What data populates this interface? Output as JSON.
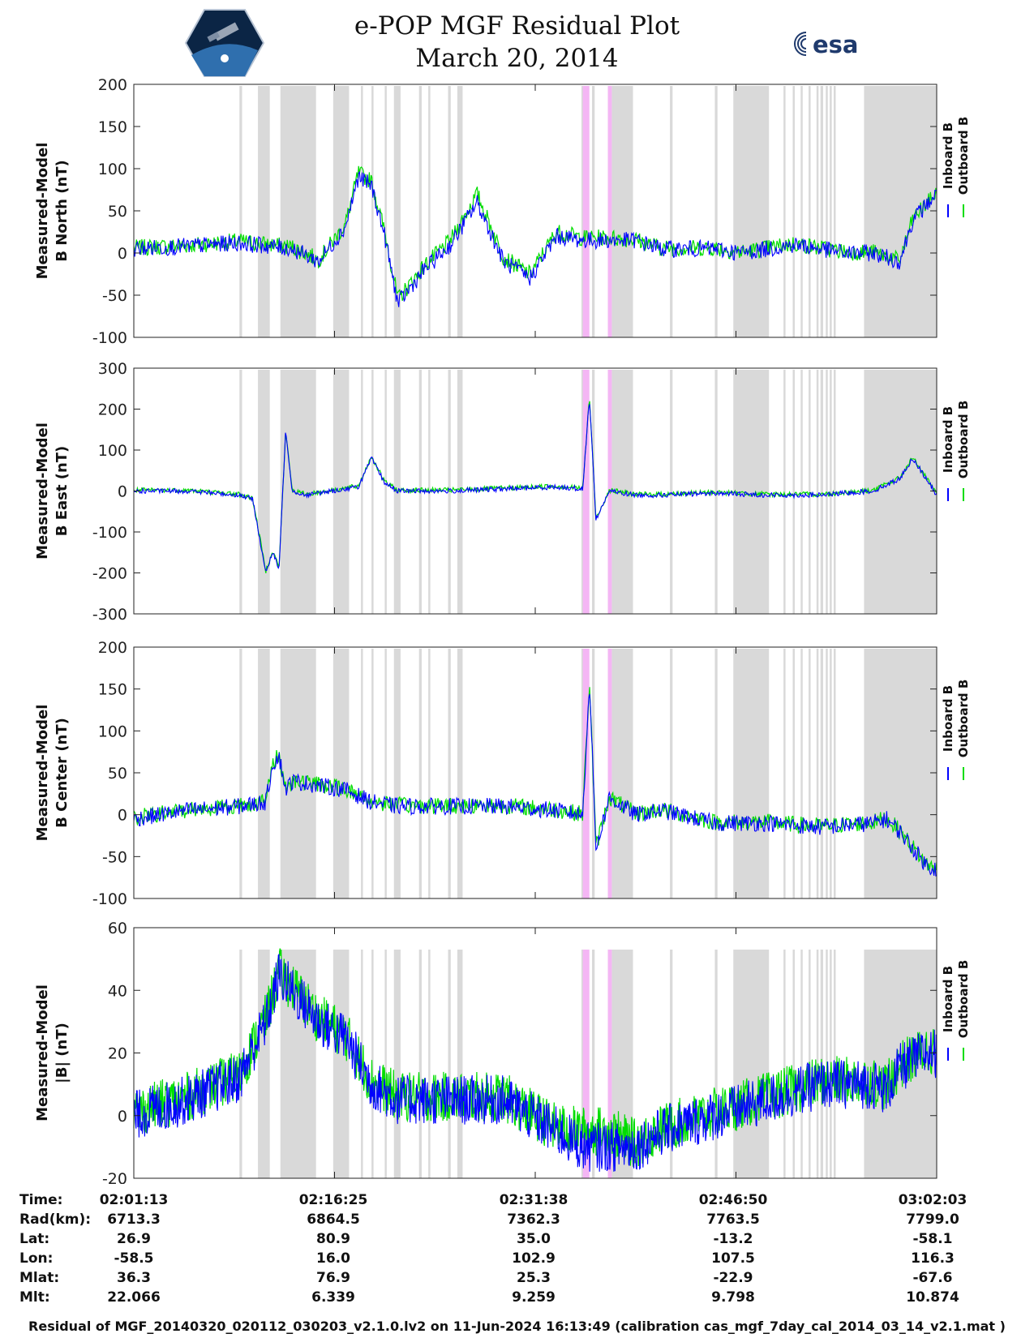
{
  "header": {
    "title_line1": "e-POP MGF Residual Plot",
    "title_line2": "March 20, 2014",
    "logo_left": "cassiope-logo",
    "logo_right_text": "esa"
  },
  "colors": {
    "inboard": "#0000ff",
    "outboard": "#00dd00",
    "gap": "#d9d9d9",
    "event": "#f4b6f4"
  },
  "chart_data": [
    {
      "type": "line",
      "ylabel_line1": "Measured-Model",
      "ylabel_line2": "B North (nT)",
      "ylim": [
        -100,
        200
      ],
      "yticks": [
        200,
        150,
        100,
        50,
        0,
        -50,
        -100
      ],
      "legend": [
        "Inboard B",
        "Outboard B"
      ],
      "xlim": [
        "02:01:13",
        "03:02:03"
      ],
      "series": [
        {
          "name": "Inboard B",
          "x_min": [
            0,
            4,
            8,
            12,
            14,
            16,
            17,
            18,
            19,
            20,
            22,
            24,
            26,
            28,
            30,
            32,
            34,
            36,
            38,
            40,
            42,
            44,
            46,
            48,
            50,
            52,
            54,
            56,
            58,
            59,
            60.8
          ],
          "values": [
            5,
            8,
            12,
            5,
            -10,
            30,
            90,
            80,
            20,
            -60,
            -20,
            10,
            60,
            -10,
            -30,
            20,
            15,
            15,
            15,
            5,
            5,
            5,
            0,
            5,
            10,
            5,
            0,
            0,
            -10,
            40,
            70
          ]
        },
        {
          "name": "Outboard B",
          "x_min": [
            0,
            4,
            8,
            12,
            14,
            16,
            17,
            18,
            19,
            20,
            22,
            24,
            26,
            28,
            30,
            32,
            34,
            36,
            38,
            40,
            42,
            44,
            46,
            48,
            50,
            52,
            54,
            56,
            58,
            59,
            60.8
          ],
          "values": [
            6,
            9,
            14,
            7,
            -8,
            33,
            95,
            85,
            25,
            -55,
            -15,
            15,
            70,
            -5,
            -25,
            25,
            18,
            18,
            16,
            6,
            6,
            6,
            1,
            6,
            11,
            6,
            1,
            1,
            -9,
            41,
            71
          ]
        }
      ]
    },
    {
      "type": "line",
      "ylabel_line1": "Measured-Model",
      "ylabel_line2": "B East (nT)",
      "ylim": [
        -300,
        300
      ],
      "yticks": [
        300,
        200,
        100,
        0,
        -100,
        -200,
        -300
      ],
      "legend": [
        "Inboard B",
        "Outboard B"
      ],
      "xlim": [
        "02:01:13",
        "03:02:03"
      ],
      "series": [
        {
          "name": "Inboard B",
          "x_min": [
            0,
            4,
            8,
            9,
            10,
            10.5,
            11,
            11.5,
            12,
            13,
            15,
            17,
            18,
            19,
            20,
            24,
            28,
            32,
            34,
            34.5,
            35,
            36,
            38,
            40,
            44,
            48,
            52,
            56,
            58,
            59,
            60.8
          ],
          "values": [
            0,
            0,
            -10,
            -20,
            -200,
            -150,
            -190,
            150,
            0,
            -10,
            0,
            10,
            80,
            20,
            0,
            0,
            5,
            10,
            5,
            230,
            -70,
            0,
            -10,
            -10,
            -5,
            -10,
            -10,
            0,
            30,
            80,
            -10
          ]
        },
        {
          "name": "Outboard B",
          "x_min": [
            0,
            4,
            8,
            9,
            10,
            10.5,
            11,
            11.5,
            12,
            13,
            15,
            17,
            18,
            19,
            20,
            24,
            28,
            32,
            34,
            34.5,
            35,
            36,
            38,
            40,
            44,
            48,
            52,
            56,
            58,
            59,
            60.8
          ],
          "values": [
            2,
            2,
            -8,
            -18,
            -195,
            -145,
            -185,
            145,
            2,
            -8,
            2,
            12,
            85,
            22,
            2,
            2,
            7,
            12,
            7,
            232,
            -68,
            2,
            -8,
            -8,
            -3,
            -8,
            -8,
            2,
            32,
            82,
            -8
          ]
        }
      ]
    },
    {
      "type": "line",
      "ylabel_line1": "Measured-Model",
      "ylabel_line2": "B Center (nT)",
      "ylim": [
        -100,
        200
      ],
      "yticks": [
        200,
        150,
        100,
        50,
        0,
        -50,
        -100
      ],
      "legend": [
        "Inboard B",
        "Outboard B"
      ],
      "xlim": [
        "02:01:13",
        "03:02:03"
      ],
      "series": [
        {
          "name": "Inboard B",
          "x_min": [
            0,
            4,
            8,
            10,
            10.5,
            11,
            11.5,
            12,
            14,
            16,
            18,
            20,
            24,
            28,
            32,
            34,
            34.5,
            35,
            36,
            38,
            40,
            44,
            48,
            52,
            56,
            57,
            58,
            59,
            60,
            60.8
          ],
          "values": [
            -5,
            5,
            10,
            15,
            60,
            70,
            30,
            40,
            35,
            30,
            15,
            10,
            10,
            10,
            5,
            0,
            160,
            -40,
            20,
            0,
            5,
            -10,
            -10,
            -15,
            -10,
            -5,
            -20,
            -40,
            -60,
            -65
          ]
        },
        {
          "name": "Outboard B",
          "x_min": [
            0,
            4,
            8,
            10,
            10.5,
            11,
            11.5,
            12,
            14,
            16,
            18,
            20,
            24,
            28,
            32,
            34,
            34.5,
            35,
            36,
            38,
            40,
            44,
            48,
            52,
            56,
            57,
            58,
            59,
            60,
            60.8
          ],
          "values": [
            -4,
            6,
            11,
            16,
            61,
            71,
            31,
            41,
            36,
            31,
            16,
            11,
            11,
            11,
            6,
            1,
            161,
            -39,
            21,
            1,
            6,
            -9,
            -9,
            -14,
            -9,
            -4,
            -19,
            -39,
            -59,
            -64
          ]
        }
      ]
    },
    {
      "type": "line",
      "ylabel_line1": "Measured-Model",
      "ylabel_line2": "|B| (nT)",
      "ylim": [
        -20,
        60
      ],
      "yticks": [
        60,
        40,
        20,
        0,
        -20
      ],
      "legend": [
        "Inboard B",
        "Outboard B"
      ],
      "xlim": [
        "02:01:13",
        "03:02:03"
      ],
      "series": [
        {
          "name": "Inboard B",
          "x_min": [
            0,
            4,
            8,
            10,
            11,
            14,
            16,
            18,
            20,
            24,
            28,
            32,
            34,
            36,
            38,
            40,
            44,
            48,
            52,
            56,
            57,
            58,
            60,
            60.8
          ],
          "values": [
            0,
            5,
            12,
            30,
            45,
            30,
            25,
            10,
            5,
            5,
            5,
            -5,
            -10,
            -10,
            -10,
            -5,
            0,
            5,
            10,
            10,
            8,
            15,
            20,
            20
          ]
        },
        {
          "name": "Outboard B",
          "x_min": [
            0,
            4,
            8,
            10,
            11,
            14,
            16,
            18,
            20,
            24,
            28,
            32,
            34,
            36,
            38,
            40,
            44,
            48,
            52,
            56,
            57,
            58,
            60,
            60.8
          ],
          "values": [
            1,
            6,
            13,
            31,
            46,
            31,
            26,
            11,
            6,
            6,
            6,
            -4,
            -5,
            -5,
            -9,
            -4,
            1,
            6,
            11,
            11,
            9,
            16,
            21,
            21
          ]
        }
      ]
    }
  ],
  "shading": {
    "gray_intervals_min": [
      [
        8,
        8.2
      ],
      [
        9.4,
        10.3
      ],
      [
        11.1,
        13.8
      ],
      [
        15.1,
        16.3
      ],
      [
        17.2,
        17.3
      ],
      [
        18.0,
        18.1
      ],
      [
        19.0,
        19.1
      ],
      [
        19.7,
        20.2
      ],
      [
        21.6,
        21.8
      ],
      [
        22.3,
        22.4
      ],
      [
        23.8,
        24.0
      ],
      [
        24.5,
        24.9
      ],
      [
        33.9,
        34.0
      ],
      [
        34.7,
        34.9
      ],
      [
        35.9,
        36.0
      ],
      [
        36.2,
        37.8
      ],
      [
        40.6,
        40.8
      ],
      [
        44.0,
        44.2
      ],
      [
        45.4,
        48.1
      ],
      [
        49.2,
        49.3
      ],
      [
        49.9,
        50.0
      ],
      [
        50.5,
        50.6
      ],
      [
        51.1,
        51.2
      ],
      [
        51.7,
        51.8
      ],
      [
        52.0,
        52.2
      ],
      [
        52.4,
        52.5
      ],
      [
        52.7,
        52.8
      ],
      [
        53.0,
        53.1
      ],
      [
        55.3,
        60.8
      ]
    ],
    "event_intervals_min": [
      [
        34.0,
        34.5
      ],
      [
        35.9,
        36.2
      ]
    ]
  },
  "xticks_min": [
    0,
    15.2,
    30.4,
    45.6,
    60.8
  ],
  "table": {
    "labels": [
      "Time:",
      "Rad(km):",
      "Lat:",
      "Lon:",
      "Mlat:",
      "Mlt:"
    ],
    "columns": [
      {
        "time": "02:01:13",
        "rad": "6713.3",
        "lat": "26.9",
        "lon": "-58.5",
        "mlat": "36.3",
        "mlt": "22.066"
      },
      {
        "time": "02:16:25",
        "rad": "6864.5",
        "lat": "80.9",
        "lon": "16.0",
        "mlat": "76.9",
        "mlt": "6.339"
      },
      {
        "time": "02:31:38",
        "rad": "7362.3",
        "lat": "35.0",
        "lon": "102.9",
        "mlat": "25.3",
        "mlt": "9.259"
      },
      {
        "time": "02:46:50",
        "rad": "7763.5",
        "lat": "-13.2",
        "lon": "107.5",
        "mlat": "-22.9",
        "mlt": "9.798"
      },
      {
        "time": "03:02:03",
        "rad": "7799.0",
        "lat": "-58.1",
        "lon": "116.3",
        "mlat": "-67.6",
        "mlt": "10.874"
      }
    ]
  },
  "footer": "Residual of MGF_20140320_020112_030203_v2.1.0.lv2 on 11-Jun-2024 16:13:49 (calibration cas_mgf_7day_cal_2014_03_14_v2.1.mat )"
}
